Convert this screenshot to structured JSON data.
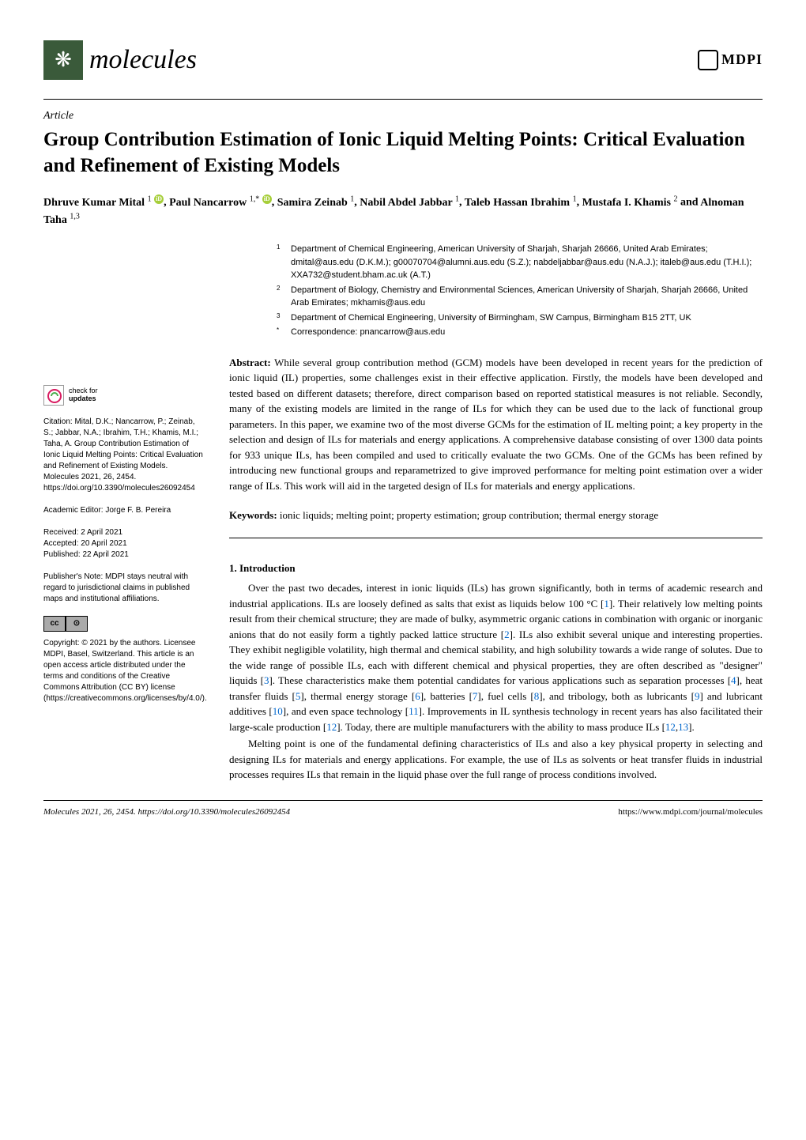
{
  "journal": {
    "name": "molecules",
    "logo_glyph": "❋",
    "publisher": "MDPI"
  },
  "article": {
    "type": "Article",
    "title": "Group Contribution Estimation of Ionic Liquid Melting Points: Critical Evaluation and Refinement of Existing Models",
    "authors_html": "Dhruve Kumar Mital ¹, Paul Nancarrow ¹'*, Samira Zeinab ¹, Nabil Abdel Jabbar ¹, Taleb Hassan Ibrahim ¹, Mustafa I. Khamis ² and Alnoman Taha ¹'³",
    "authors": [
      {
        "name": "Dhruve Kumar Mital",
        "sup": "1",
        "orcid": true
      },
      {
        "name": "Paul Nancarrow",
        "sup": "1,*",
        "orcid": true
      },
      {
        "name": "Samira Zeinab",
        "sup": "1"
      },
      {
        "name": "Nabil Abdel Jabbar",
        "sup": "1"
      },
      {
        "name": "Taleb Hassan Ibrahim",
        "sup": "1"
      },
      {
        "name": "Mustafa I. Khamis",
        "sup": "2"
      },
      {
        "name": "Alnoman Taha",
        "sup": "1,3"
      }
    ]
  },
  "affiliations": [
    {
      "sup": "1",
      "text": "Department of Chemical Engineering, American University of Sharjah, Sharjah 26666, United Arab Emirates; dmital@aus.edu (D.K.M.); g00070704@alumni.aus.edu (S.Z.); nabdeljabbar@aus.edu (N.A.J.); italeb@aus.edu (T.H.I.); XXA732@student.bham.ac.uk (A.T.)"
    },
    {
      "sup": "2",
      "text": "Department of Biology, Chemistry and Environmental Sciences, American University of Sharjah, Sharjah 26666, United Arab Emirates; mkhamis@aus.edu"
    },
    {
      "sup": "3",
      "text": "Department of Chemical Engineering, University of Birmingham, SW Campus, Birmingham B15 2TT, UK"
    },
    {
      "sup": "*",
      "text": "Correspondence: pnancarrow@aus.edu"
    }
  ],
  "abstract": {
    "label": "Abstract:",
    "text": "While several group contribution method (GCM) models have been developed in recent years for the prediction of ionic liquid (IL) properties, some challenges exist in their effective application. Firstly, the models have been developed and tested based on different datasets; therefore, direct comparison based on reported statistical measures is not reliable. Secondly, many of the existing models are limited in the range of ILs for which they can be used due to the lack of functional group parameters. In this paper, we examine two of the most diverse GCMs for the estimation of IL melting point; a key property in the selection and design of ILs for materials and energy applications. A comprehensive database consisting of over 1300 data points for 933 unique ILs, has been compiled and used to critically evaluate the two GCMs. One of the GCMs has been refined by introducing new functional groups and reparametrized to give improved performance for melting point estimation over a wider range of ILs. This work will aid in the targeted design of ILs for materials and energy applications."
  },
  "keywords": {
    "label": "Keywords:",
    "text": "ionic liquids; melting point; property estimation; group contribution; thermal energy storage"
  },
  "sidebar": {
    "check_updates": {
      "line1": "check for",
      "line2": "updates"
    },
    "citation": "Citation: Mital, D.K.; Nancarrow, P.; Zeinab, S.; Jabbar, N.A.; Ibrahim, T.H.; Khamis, M.I.; Taha, A. Group Contribution Estimation of Ionic Liquid Melting Points: Critical Evaluation and Refinement of Existing Models. Molecules 2021, 26, 2454. https://doi.org/10.3390/molecules26092454",
    "editor": "Academic Editor: Jorge F. B. Pereira",
    "dates": "Received: 2 April 2021\nAccepted: 20 April 2021\nPublished: 22 April 2021",
    "publisher_note": "Publisher's Note: MDPI stays neutral with regard to jurisdictional claims in published maps and institutional affiliations.",
    "cc_label_left": "cc",
    "cc_label_right": "⊙",
    "copyright": "Copyright: © 2021 by the authors. Licensee MDPI, Basel, Switzerland. This article is an open access article distributed under the terms and conditions of the Creative Commons Attribution (CC BY) license (https://creativecommons.org/licenses/by/4.0/)."
  },
  "sections": {
    "intro_heading": "1. Introduction",
    "intro_para1_pre": "Over the past two decades, interest in ionic liquids (ILs) has grown significantly, both in terms of academic research and industrial applications. ILs are loosely defined as salts that exist as liquids below 100 °C [",
    "intro_para1_r1": "1",
    "intro_para1_mid1": "]. Their relatively low melting points result from their chemical structure; they are made of bulky, asymmetric organic cations in combination with organic or inorganic anions that do not easily form a tightly packed lattice structure [",
    "intro_para1_r2": "2",
    "intro_para1_mid2": "]. ILs also exhibit several unique and interesting properties. They exhibit negligible volatility, high thermal and chemical stability, and high solubility towards a wide range of solutes. Due to the wide range of possible ILs, each with different chemical and physical properties, they are often described as \"designer\" liquids [",
    "intro_para1_r3": "3",
    "intro_para1_mid3": "]. These characteristics make them potential candidates for various applications such as separation processes [",
    "intro_para1_r4": "4",
    "intro_para1_mid4": "], heat transfer fluids [",
    "intro_para1_r5": "5",
    "intro_para1_mid5": "], thermal energy storage [",
    "intro_para1_r6": "6",
    "intro_para1_mid6": "], batteries [",
    "intro_para1_r7": "7",
    "intro_para1_mid7": "], fuel cells [",
    "intro_para1_r8": "8",
    "intro_para1_mid8": "], and tribology, both as lubricants [",
    "intro_para1_r9": "9",
    "intro_para1_mid9": "] and lubricant additives [",
    "intro_para1_r10": "10",
    "intro_para1_mid10": "], and even space technology [",
    "intro_para1_r11": "11",
    "intro_para1_mid11": "]. Improvements in IL synthesis technology in recent years has also facilitated their large-scale production [",
    "intro_para1_r12": "12",
    "intro_para1_mid12": "]. Today, there are multiple manufacturers with the ability to mass produce ILs [",
    "intro_para1_r13a": "12",
    "intro_para1_comma": ",",
    "intro_para1_r13b": "13",
    "intro_para1_end": "].",
    "intro_para2": "Melting point is one of the fundamental defining characteristics of ILs and also a key physical property in selecting and designing ILs for materials and energy applications. For example, the use of ILs as solvents or heat transfer fluids in industrial processes requires ILs that remain in the liquid phase over the full range of process conditions involved."
  },
  "footer": {
    "left": "Molecules 2021, 26, 2454. https://doi.org/10.3390/molecules26092454",
    "right": "https://www.mdpi.com/journal/molecules"
  },
  "colors": {
    "logo_bg": "#3a5a3a",
    "link": "#0066cc",
    "orcid": "#a6ce39"
  }
}
